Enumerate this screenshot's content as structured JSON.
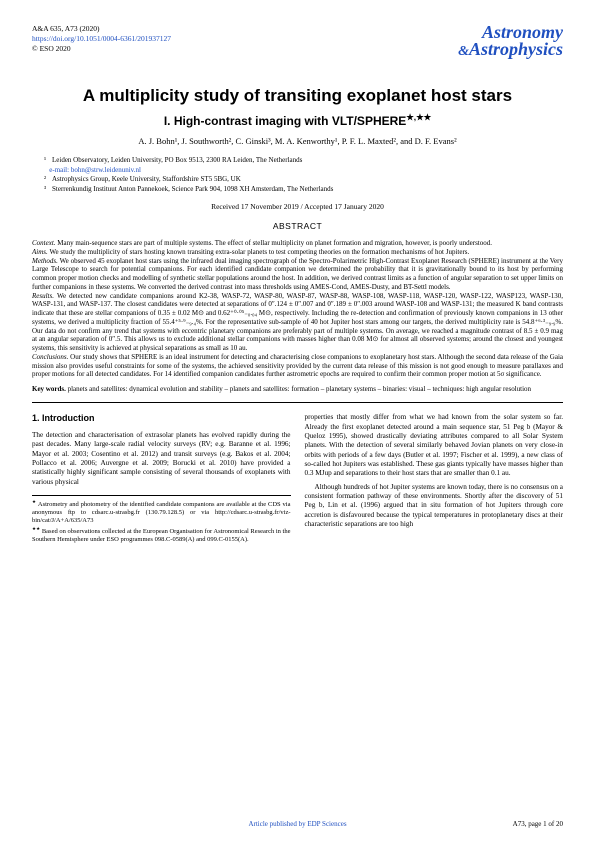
{
  "header": {
    "ref": "A&A 635, A73 (2020)",
    "doi": "https://doi.org/10.1051/0004-6361/201937127",
    "copyright": "© ESO 2020",
    "journal_top": "Astronomy",
    "journal_amp": "&",
    "journal_bottom": "Astrophysics"
  },
  "title": "A multiplicity study of transiting exoplanet host stars",
  "subtitle": "I. High-contrast imaging with VLT/SPHERE",
  "subtitle_marks": "★,★★",
  "authors": "A. J. Bohn¹, J. Southworth², C. Ginski³, M. A. Kenworthy¹, P. F. L. Maxted², and D. F. Evans²",
  "affiliations": [
    {
      "n": "¹",
      "text": "Leiden Observatory, Leiden University, PO Box 9513, 2300 RA Leiden, The Netherlands",
      "email": "e-mail: bohn@strw.leidenuniv.nl"
    },
    {
      "n": "²",
      "text": "Astrophysics Group, Keele University, Staffordshire ST5 5BG, UK",
      "email": ""
    },
    {
      "n": "³",
      "text": "Sterrenkundig Instituut Anton Pannekoek, Science Park 904, 1098 XH Amsterdam, The Netherlands",
      "email": ""
    }
  ],
  "dates": "Received 17 November 2019 / Accepted 17 January 2020",
  "abstract_label": "ABSTRACT",
  "abstract": {
    "context": "Many main-sequence stars are part of multiple systems. The effect of stellar multiplicity on planet formation and migration, however, is poorly understood.",
    "aims": "We study the multiplicity of stars hosting known transiting extra-solar planets to test competing theories on the formation mechanisms of hot Jupiters.",
    "methods": "We observed 45 exoplanet host stars using the infrared dual imaging spectrograph of the Spectro-Polarimetric High-Contrast Exoplanet Research (SPHERE) instrument at the Very Large Telescope to search for potential companions. For each identified candidate companion we determined the probability that it is gravitationally bound to its host by performing common proper motion checks and modelling of synthetic stellar populations around the host. In addition, we derived contrast limits as a function of angular separation to set upper limits on further companions in these systems. We converted the derived contrast into mass thresholds using AMES-Cond, AMES-Dusty, and BT-Settl models.",
    "results": "We detected new candidate companions around K2-38, WASP-72, WASP-80, WASP-87, WASP-88, WASP-108, WASP-118, WASP-120, WASP-122, WASP123, WASP-130, WASP-131, and WASP-137. The closest candidates were detected at separations of 0″.124 ± 0″.007 and 0″.189 ± 0″.003 around WASP-108 and WASP-131; the measured K band contrasts indicate that these are stellar companions of 0.35 ± 0.02 M⊙ and 0.62⁺⁰·⁰⁵₋₀.₀₄ M⊙, respectively. Including the re-detection and confirmation of previously known companions in 13 other systems, we derived a multiplicity fraction of 55.4⁺⁵·⁹₋₉.₄%. For the representative sub-sample of 40 hot Jupiter host stars among our targets, the derived multiplicity rate is 54.8⁺⁶·³₋₉.₉%. Our data do not confirm any trend that systems with eccentric planetary companions are preferably part of multiple systems. On average, we reached a magnitude contrast of 8.5 ± 0.9 mag at an angular separation of 0″.5. This allows us to exclude additional stellar companions with masses higher than 0.08 M⊙ for almost all observed systems; around the closest and youngest systems, this sensitivity is achieved at physical separations as small as 10 au.",
    "conclusions": "Our study shows that SPHERE is an ideal instrument for detecting and characterising close companions to exoplanetary host stars. Although the second data release of the Gaia mission also provides useful constraints for some of the systems, the achieved sensitivity provided by the current data release of this mission is not good enough to measure parallaxes and proper motions for all detected candidates. For 14 identified companion candidates further astrometric epochs are required to confirm their common proper motion at 5σ significance."
  },
  "keywords_label": "Key words.",
  "keywords": "planets and satellites: dynamical evolution and stability – planets and satellites: formation – planetary systems – binaries: visual – techniques: high angular resolution",
  "section1_head": "1. Introduction",
  "col_left": {
    "p1": "The detection and characterisation of extrasolar planets has evolved rapidly during the past decades. Many large-scale radial velocity surveys (RV; e.g. Baranne et al. 1996; Mayor et al. 2003; Cosentino et al. 2012) and transit surveys (e.g. Bakos et al. 2004; Pollacco et al. 2006; Auvergne et al. 2009; Borucki et al. 2010) have provided a statistically highly significant sample consisting of several thousands of exoplanets with various physical"
  },
  "footnotes": {
    "f1_mark": "★",
    "f1": "Astrometry and photometry of the identified candidate companions are available at the CDS via anonymous ftp to cdsarc.u-strasbg.fr (130.79.128.5) or via http://cdsarc.u-strasbg.fr/viz-bin/cat/J/A+A/635/A73",
    "f2_mark": "★★",
    "f2": "Based on observations collected at the European Organisation for Astronomical Research in the Southern Hemisphere under ESO programmes 098.C-0589(A) and 099.C-0155(A)."
  },
  "col_right": {
    "p1": "properties that mostly differ from what we had known from the solar system so far. Already the first exoplanet detected around a main sequence star, 51 Peg b (Mayor & Queloz 1995), showed drastically deviating attributes compared to all Solar System planets. With the detection of several similarly behaved Jovian planets on very close-in orbits with periods of a few days (Butler et al. 1997; Fischer et al. 1999), a new class of so-called hot Jupiters was established. These gas giants typically have masses higher than 0.3 MJup and separations to their host stars that are smaller than 0.1 au.",
    "p2": "Although hundreds of hot Jupiter systems are known today, there is no consensus on a consistent formation pathway of these environments. Shortly after the discovery of 51 Peg b, Lin et al. (1996) argued that in situ formation of hot Jupiters through core accretion is disfavoured because the typical temperatures in protoplanetary discs at their characteristic separations are too high"
  },
  "footer": {
    "pub": "Article published by EDP Sciences",
    "pg": "A73, page 1 of 20"
  }
}
